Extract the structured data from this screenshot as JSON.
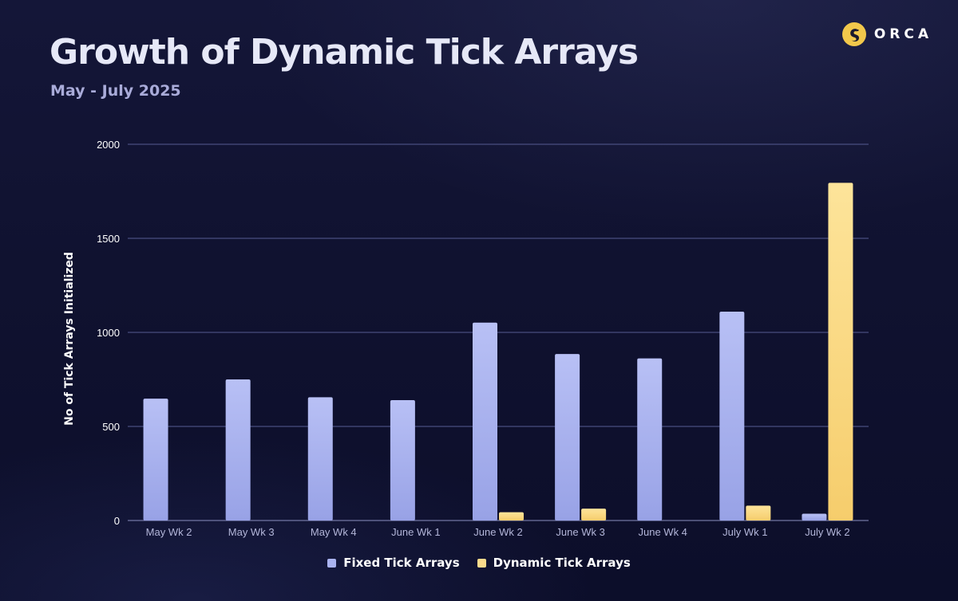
{
  "brand": {
    "name": "ORCA",
    "accent": "#f2c84b"
  },
  "colors": {
    "fixed": "#aab3f0",
    "dynamic": "#fbdb8c",
    "grid": "#565b92",
    "tick_text": "#b3b6d9"
  },
  "chart_data": {
    "type": "bar",
    "title": "Growth of Dynamic Tick Arrays",
    "subtitle": "May - July 2025",
    "xlabel": "",
    "ylabel": "No of Tick Arrays Initialized",
    "ylim": [
      0,
      2000
    ],
    "yticks": [
      0,
      500,
      1000,
      1500,
      2000
    ],
    "grid": true,
    "legend_position": "bottom-center",
    "categories": [
      "May Wk 2",
      "May Wk 3",
      "May Wk 4",
      "June Wk 1",
      "June Wk 2",
      "June Wk 3",
      "June Wk 4",
      "July Wk 1",
      "July Wk 2"
    ],
    "series": [
      {
        "name": "Fixed Tick Arrays",
        "values": [
          648,
          750,
          655,
          640,
          1052,
          885,
          862,
          1110,
          36
        ]
      },
      {
        "name": "Dynamic Tick Arrays",
        "values": [
          0,
          0,
          0,
          0,
          44,
          63,
          0,
          79,
          1795
        ]
      }
    ]
  }
}
